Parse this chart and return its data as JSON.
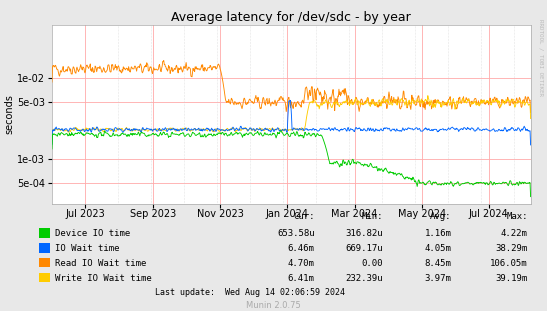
{
  "title": "Average latency for /dev/sdc - by year",
  "ylabel": "seconds",
  "background_color": "#e8e8e8",
  "plot_bg_color": "#ffffff",
  "right_label": "RRDTOOL / TOBI OETIKER",
  "legend": [
    {
      "label": "Device IO time",
      "color": "#00cc00"
    },
    {
      "label": "IO Wait time",
      "color": "#0066ff"
    },
    {
      "label": "Read IO Wait time",
      "color": "#ff8800"
    },
    {
      "label": "Write IO Wait time",
      "color": "#ffcc00"
    }
  ],
  "x_tick_labels": [
    "Jul 2023",
    "Sep 2023",
    "Nov 2023",
    "Jan 2024",
    "Mar 2024",
    "May 2024",
    "Jul 2024"
  ],
  "x_tick_days": [
    30,
    92,
    153,
    214,
    275,
    336,
    397
  ],
  "xlim": [
    0,
    435
  ],
  "y_ticks": [
    0.0005,
    0.001,
    0.005,
    0.01
  ],
  "ylim": [
    0.00028,
    0.045
  ],
  "table_headers": [
    "Cur:",
    "Min:",
    "Avg:",
    "Max:"
  ],
  "table_rows": [
    [
      "Device IO time",
      "653.58u",
      "316.82u",
      "1.16m",
      "4.22m"
    ],
    [
      "IO Wait time",
      "6.46m",
      "669.17u",
      "4.05m",
      "38.29m"
    ],
    [
      "Read IO Wait time",
      "4.70m",
      "0.00",
      "8.45m",
      "106.05m"
    ],
    [
      "Write IO Wait time",
      "6.41m",
      "232.39u",
      "3.97m",
      "39.19m"
    ]
  ],
  "footer": "Last update:  Wed Aug 14 02:06:59 2024",
  "munin_version": "Munin 2.0.75"
}
